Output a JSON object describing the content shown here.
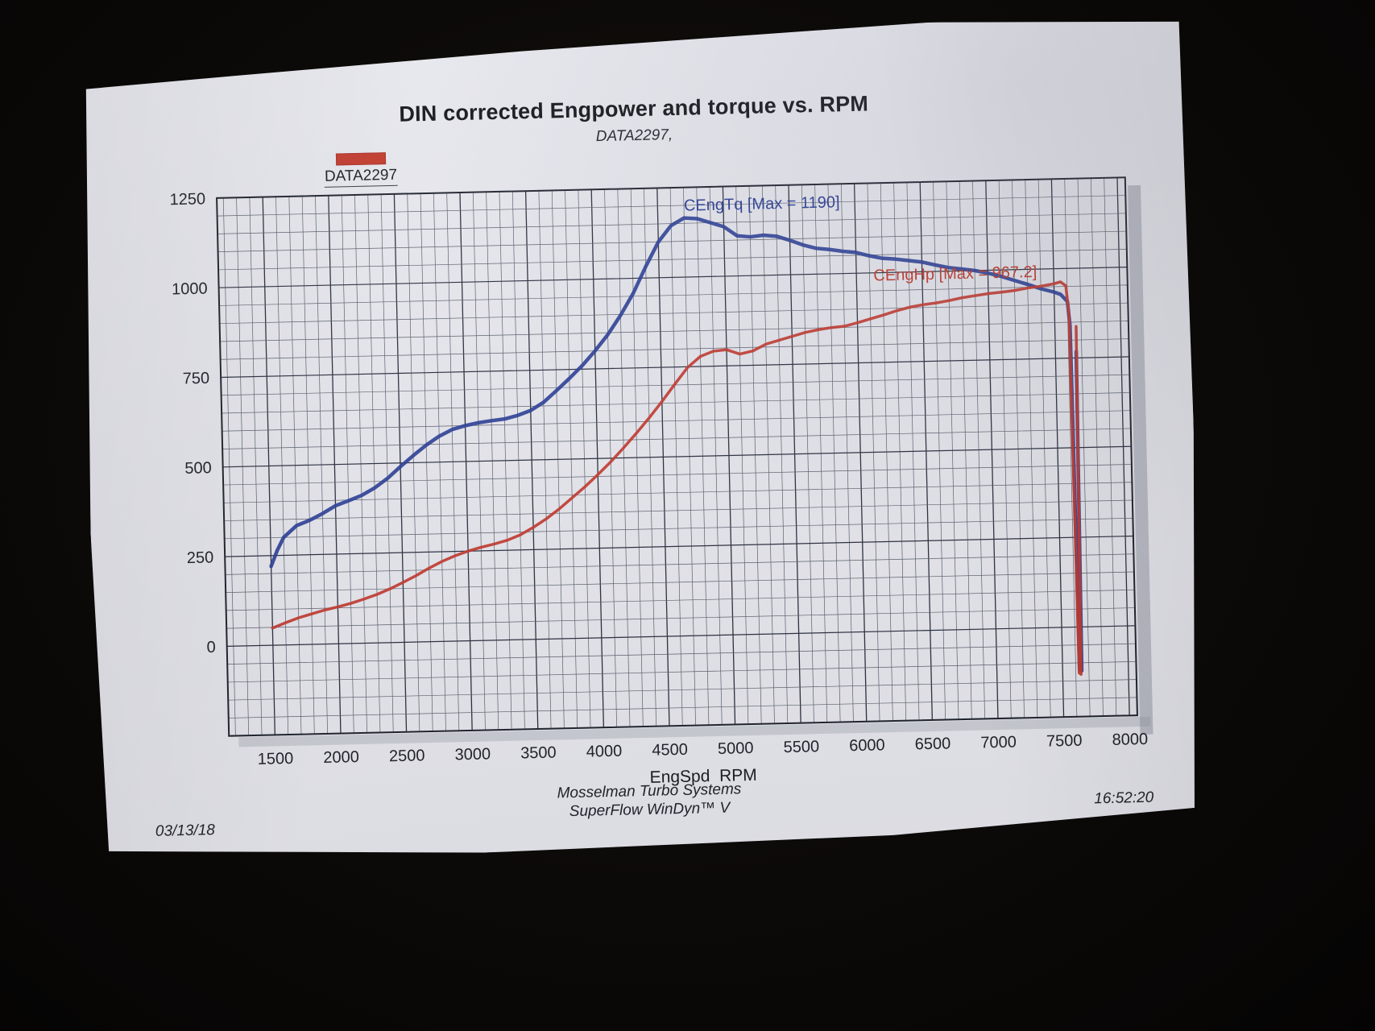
{
  "paper_color": "#e7e7ee",
  "chart_data": {
    "type": "line",
    "title": "DIN corrected Engpower and torque vs. RPM",
    "subtitle": "DATA2297,",
    "legend": {
      "swatch_color": "#c23b2e",
      "label": "DATA2297"
    },
    "xlabel": "EngSpd  RPM",
    "footer_line1": "Mosselman Turbo Systems",
    "footer_line2": "SuperFlow WinDyn™ V",
    "date": "03/13/18",
    "time": "16:52:20",
    "xlim": [
      1150,
      8060
    ],
    "ylim": [
      -250,
      1250
    ],
    "x_ticks": [
      1500,
      2000,
      2500,
      3000,
      3500,
      4000,
      4500,
      5000,
      5500,
      6000,
      6500,
      7000,
      7500,
      8000
    ],
    "y_ticks": [
      0,
      250,
      500,
      750,
      1000,
      1250
    ],
    "grid": {
      "x_minor_step": 100,
      "x_major_step": 500,
      "y_minor_step": 50,
      "y_major_step": 250,
      "grid_on": true
    },
    "legend_position": "top-left",
    "annotations": [
      {
        "text": "CEngTq [Max = 1190]",
        "x": 4700,
        "y": 1185,
        "color": "#2b3f96"
      },
      {
        "text": "CEngHp [Max = 967.2]",
        "x": 6130,
        "y": 978,
        "color": "#c23b2e"
      }
    ],
    "series": [
      {
        "name": "CEngTq",
        "color": "#2e4299",
        "width": 4.5,
        "points": [
          [
            1500,
            220
          ],
          [
            1550,
            265
          ],
          [
            1600,
            300
          ],
          [
            1700,
            332
          ],
          [
            1800,
            346
          ],
          [
            1900,
            364
          ],
          [
            2000,
            385
          ],
          [
            2100,
            398
          ],
          [
            2200,
            412
          ],
          [
            2300,
            432
          ],
          [
            2400,
            458
          ],
          [
            2500,
            490
          ],
          [
            2600,
            520
          ],
          [
            2700,
            548
          ],
          [
            2800,
            572
          ],
          [
            2900,
            590
          ],
          [
            3000,
            600
          ],
          [
            3100,
            607
          ],
          [
            3200,
            612
          ],
          [
            3300,
            616
          ],
          [
            3400,
            625
          ],
          [
            3500,
            638
          ],
          [
            3600,
            660
          ],
          [
            3700,
            692
          ],
          [
            3800,
            725
          ],
          [
            3900,
            760
          ],
          [
            4000,
            800
          ],
          [
            4100,
            845
          ],
          [
            4200,
            898
          ],
          [
            4300,
            958
          ],
          [
            4400,
            1032
          ],
          [
            4500,
            1100
          ],
          [
            4600,
            1145
          ],
          [
            4700,
            1165
          ],
          [
            4800,
            1162
          ],
          [
            4900,
            1150
          ],
          [
            5000,
            1138
          ],
          [
            5100,
            1112
          ],
          [
            5200,
            1108
          ],
          [
            5300,
            1112
          ],
          [
            5400,
            1108
          ],
          [
            5500,
            1096
          ],
          [
            5600,
            1082
          ],
          [
            5700,
            1072
          ],
          [
            5800,
            1068
          ],
          [
            5900,
            1062
          ],
          [
            6000,
            1058
          ],
          [
            6100,
            1048
          ],
          [
            6200,
            1040
          ],
          [
            6300,
            1037
          ],
          [
            6400,
            1032
          ],
          [
            6500,
            1027
          ],
          [
            6600,
            1018
          ],
          [
            6700,
            1010
          ],
          [
            6800,
            1005
          ],
          [
            6900,
            1000
          ],
          [
            7000,
            992
          ],
          [
            7100,
            982
          ],
          [
            7200,
            970
          ],
          [
            7300,
            958
          ],
          [
            7400,
            945
          ],
          [
            7500,
            935
          ],
          [
            7550,
            928
          ],
          [
            7600,
            908
          ],
          [
            7615,
            840
          ],
          [
            7630,
            -118
          ],
          [
            7645,
            -122
          ],
          [
            7658,
            768
          ]
        ]
      },
      {
        "name": "CEngHp",
        "color": "#c43a30",
        "width": 3.5,
        "points": [
          [
            1500,
            48
          ],
          [
            1600,
            62
          ],
          [
            1700,
            75
          ],
          [
            1800,
            85
          ],
          [
            1900,
            95
          ],
          [
            2000,
            103
          ],
          [
            2100,
            112
          ],
          [
            2200,
            123
          ],
          [
            2300,
            135
          ],
          [
            2400,
            150
          ],
          [
            2500,
            167
          ],
          [
            2600,
            185
          ],
          [
            2700,
            205
          ],
          [
            2800,
            223
          ],
          [
            2900,
            238
          ],
          [
            3000,
            250
          ],
          [
            3100,
            260
          ],
          [
            3200,
            268
          ],
          [
            3300,
            278
          ],
          [
            3400,
            292
          ],
          [
            3500,
            312
          ],
          [
            3600,
            335
          ],
          [
            3700,
            362
          ],
          [
            3800,
            392
          ],
          [
            3900,
            422
          ],
          [
            4000,
            455
          ],
          [
            4100,
            490
          ],
          [
            4200,
            528
          ],
          [
            4300,
            568
          ],
          [
            4400,
            610
          ],
          [
            4500,
            655
          ],
          [
            4600,
            702
          ],
          [
            4700,
            748
          ],
          [
            4800,
            778
          ],
          [
            4900,
            792
          ],
          [
            5000,
            795
          ],
          [
            5100,
            782
          ],
          [
            5200,
            790
          ],
          [
            5300,
            808
          ],
          [
            5400,
            818
          ],
          [
            5500,
            828
          ],
          [
            5600,
            838
          ],
          [
            5700,
            845
          ],
          [
            5800,
            850
          ],
          [
            5900,
            853
          ],
          [
            6000,
            862
          ],
          [
            6100,
            872
          ],
          [
            6200,
            882
          ],
          [
            6300,
            893
          ],
          [
            6400,
            902
          ],
          [
            6500,
            908
          ],
          [
            6600,
            912
          ],
          [
            6700,
            918
          ],
          [
            6800,
            925
          ],
          [
            6900,
            930
          ],
          [
            7000,
            935
          ],
          [
            7100,
            938
          ],
          [
            7200,
            942
          ],
          [
            7300,
            948
          ],
          [
            7400,
            952
          ],
          [
            7500,
            958
          ],
          [
            7550,
            963
          ],
          [
            7590,
            952
          ],
          [
            7610,
            872
          ],
          [
            7625,
            -128
          ],
          [
            7640,
            -132
          ],
          [
            7662,
            838
          ]
        ]
      }
    ]
  }
}
